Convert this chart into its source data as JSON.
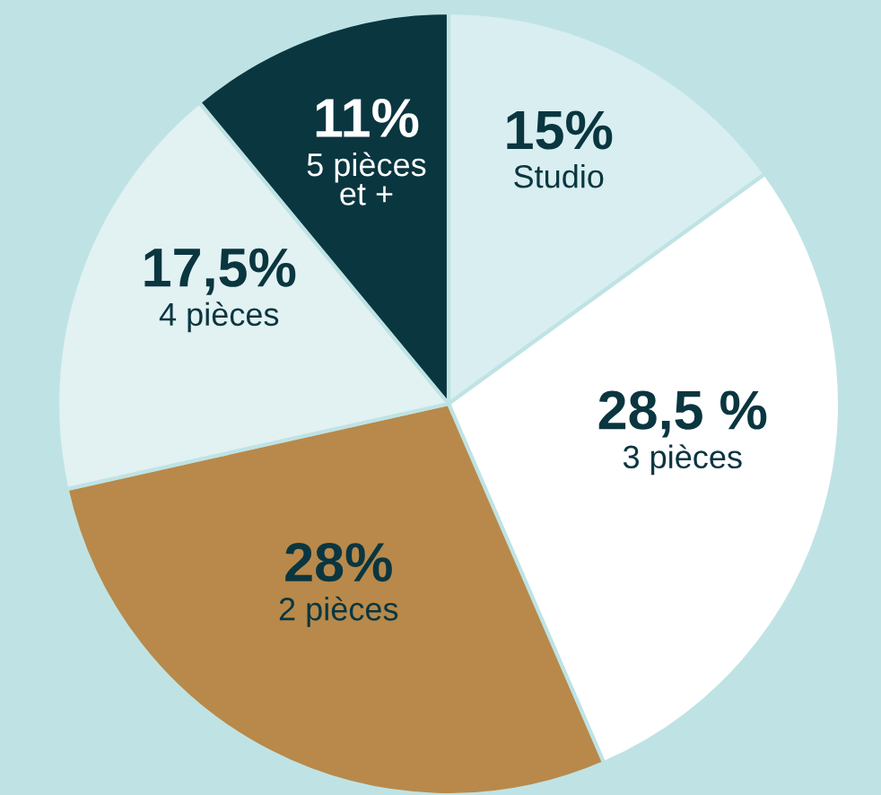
{
  "chart_data": {
    "type": "pie",
    "categories": [
      "Studio",
      "3 pièces",
      "2 pièces",
      "4 pièces",
      "5 pièces\net +"
    ],
    "values": [
      15,
      28.5,
      28,
      17.5,
      11
    ],
    "value_labels": [
      "15%",
      "28,5 %",
      "28%",
      "17,5%",
      "11%"
    ],
    "colors": [
      "#d8eef0",
      "#ffffff",
      "#b8894a",
      "#e2f1f2",
      "#0a3640"
    ]
  }
}
